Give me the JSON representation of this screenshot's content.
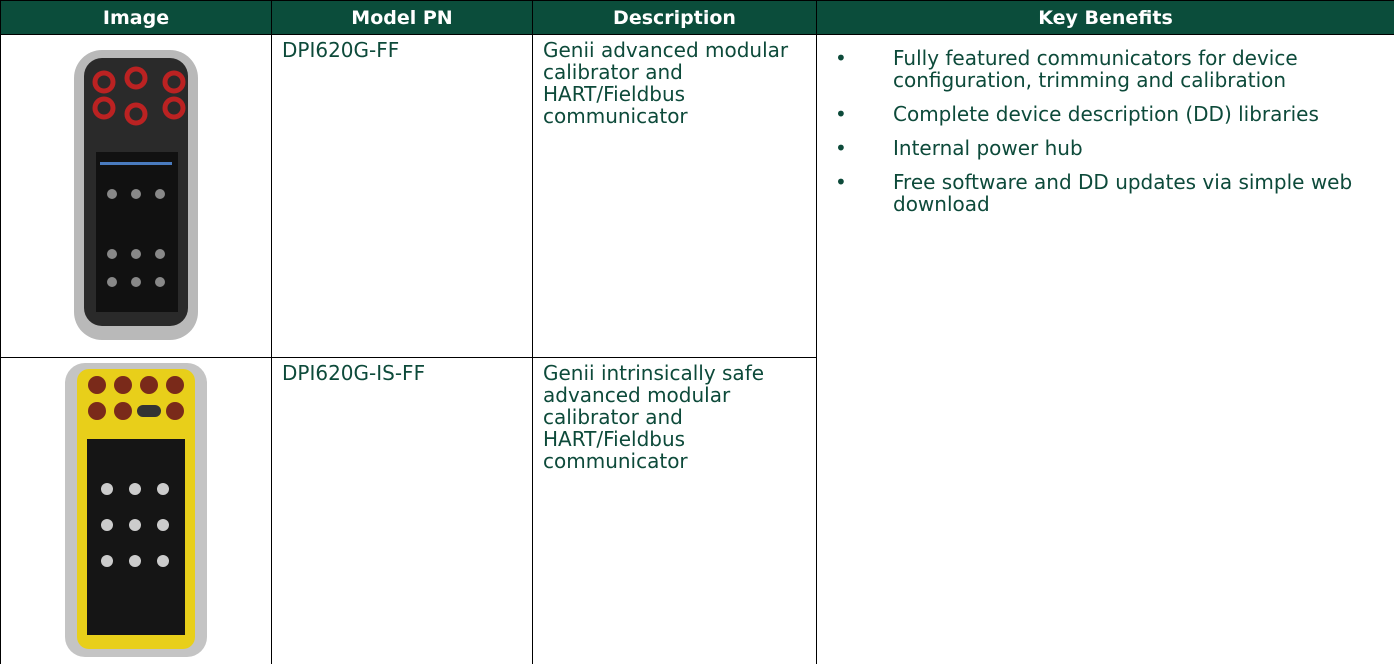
{
  "header": {
    "columns": [
      "Image",
      "Model PN",
      "Description",
      "Key Benefits"
    ]
  },
  "table": {
    "rows": [
      {
        "model_pn": "DPI620G-FF",
        "description": "Genii advanced modular calibrator and HART/Fieldbus communicator"
      },
      {
        "model_pn": "DPI620G-IS-FF",
        "description": "Genii intrinsically safe advanced modular calibrator and HART/Fieldbus communicator"
      }
    ]
  },
  "key_benefits": [
    "Fully featured communicators for device configuration, trimming and calibration",
    "Complete device description (DD) libraries",
    "Internal power hub",
    "Free software and DD updates via simple web download"
  ]
}
